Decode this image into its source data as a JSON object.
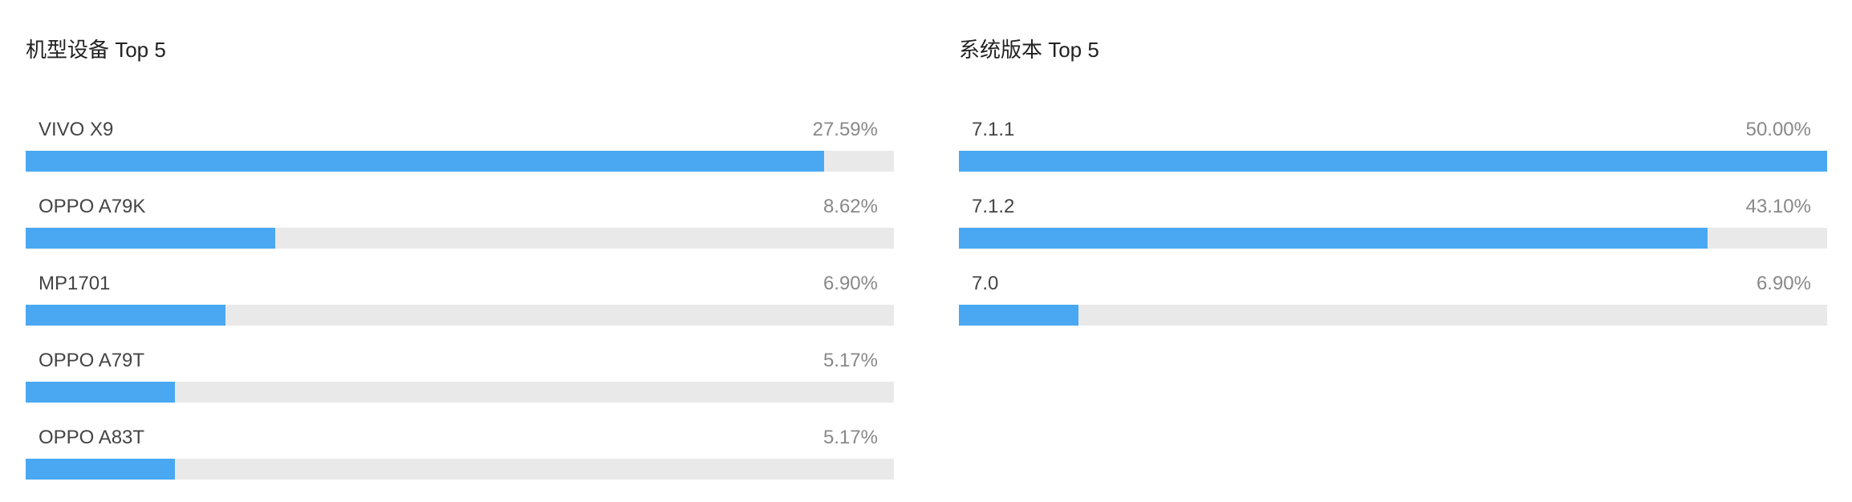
{
  "colors": {
    "bar_fill": "#4aa8f2",
    "bar_track": "#e9e9e9"
  },
  "chart_data": [
    {
      "type": "bar",
      "orientation": "horizontal",
      "title": "机型设备 Top 5",
      "categories": [
        "VIVO X9",
        "OPPO A79K",
        "MP1701",
        "OPPO A79T",
        "OPPO A83T"
      ],
      "values": [
        27.59,
        8.62,
        6.9,
        5.17,
        5.17
      ],
      "value_labels": [
        "27.59%",
        "8.62%",
        "6.90%",
        "5.17%",
        "5.17%"
      ],
      "xlim": [
        0,
        30
      ]
    },
    {
      "type": "bar",
      "orientation": "horizontal",
      "title": "系统版本 Top 5",
      "categories": [
        "7.1.1",
        "7.1.2",
        "7.0"
      ],
      "values": [
        50.0,
        43.1,
        6.9
      ],
      "value_labels": [
        "50.00%",
        "43.10%",
        "6.90%"
      ],
      "xlim": [
        0,
        50
      ]
    }
  ]
}
